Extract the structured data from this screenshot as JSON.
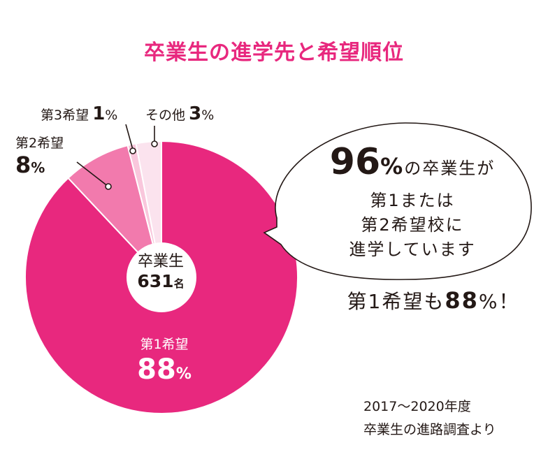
{
  "title": "卒業生の進学先と希望順位",
  "chart_data": {
    "type": "pie",
    "title": "卒業生の進学先と希望順位",
    "slices": [
      {
        "label": "第1希望",
        "value": 88,
        "color": "#e8287e"
      },
      {
        "label": "第2希望",
        "value": 8,
        "color": "#f27aad"
      },
      {
        "label": "第3希望",
        "value": 1,
        "color": "#f9c7dc"
      },
      {
        "label": "その他",
        "value": 3,
        "color": "#fbe3ee"
      }
    ],
    "unit": "%",
    "center": {
      "line1": "卒業生",
      "count": "631",
      "count_unit": "名"
    }
  },
  "labels": {
    "first_name": "第1希望",
    "first_value": "88",
    "first_unit": "%",
    "second_name": "第2希望",
    "second_value": "8",
    "second_unit": "%",
    "third_name": "第3希望",
    "third_value": "1",
    "third_unit": "%",
    "other_name": "その他",
    "other_value": "3",
    "other_unit": "%"
  },
  "bubble": {
    "big": "96",
    "pct": "%",
    "rest": "の卒業生が",
    "line2": "第1または",
    "line3": "第2希望校に",
    "line4": "進学しています"
  },
  "note": {
    "prefix": "第1希望も",
    "value": "88",
    "suffix": "%！"
  },
  "source": {
    "line1": "2017〜2020年度",
    "line2": "卒業生の進路調査より"
  }
}
